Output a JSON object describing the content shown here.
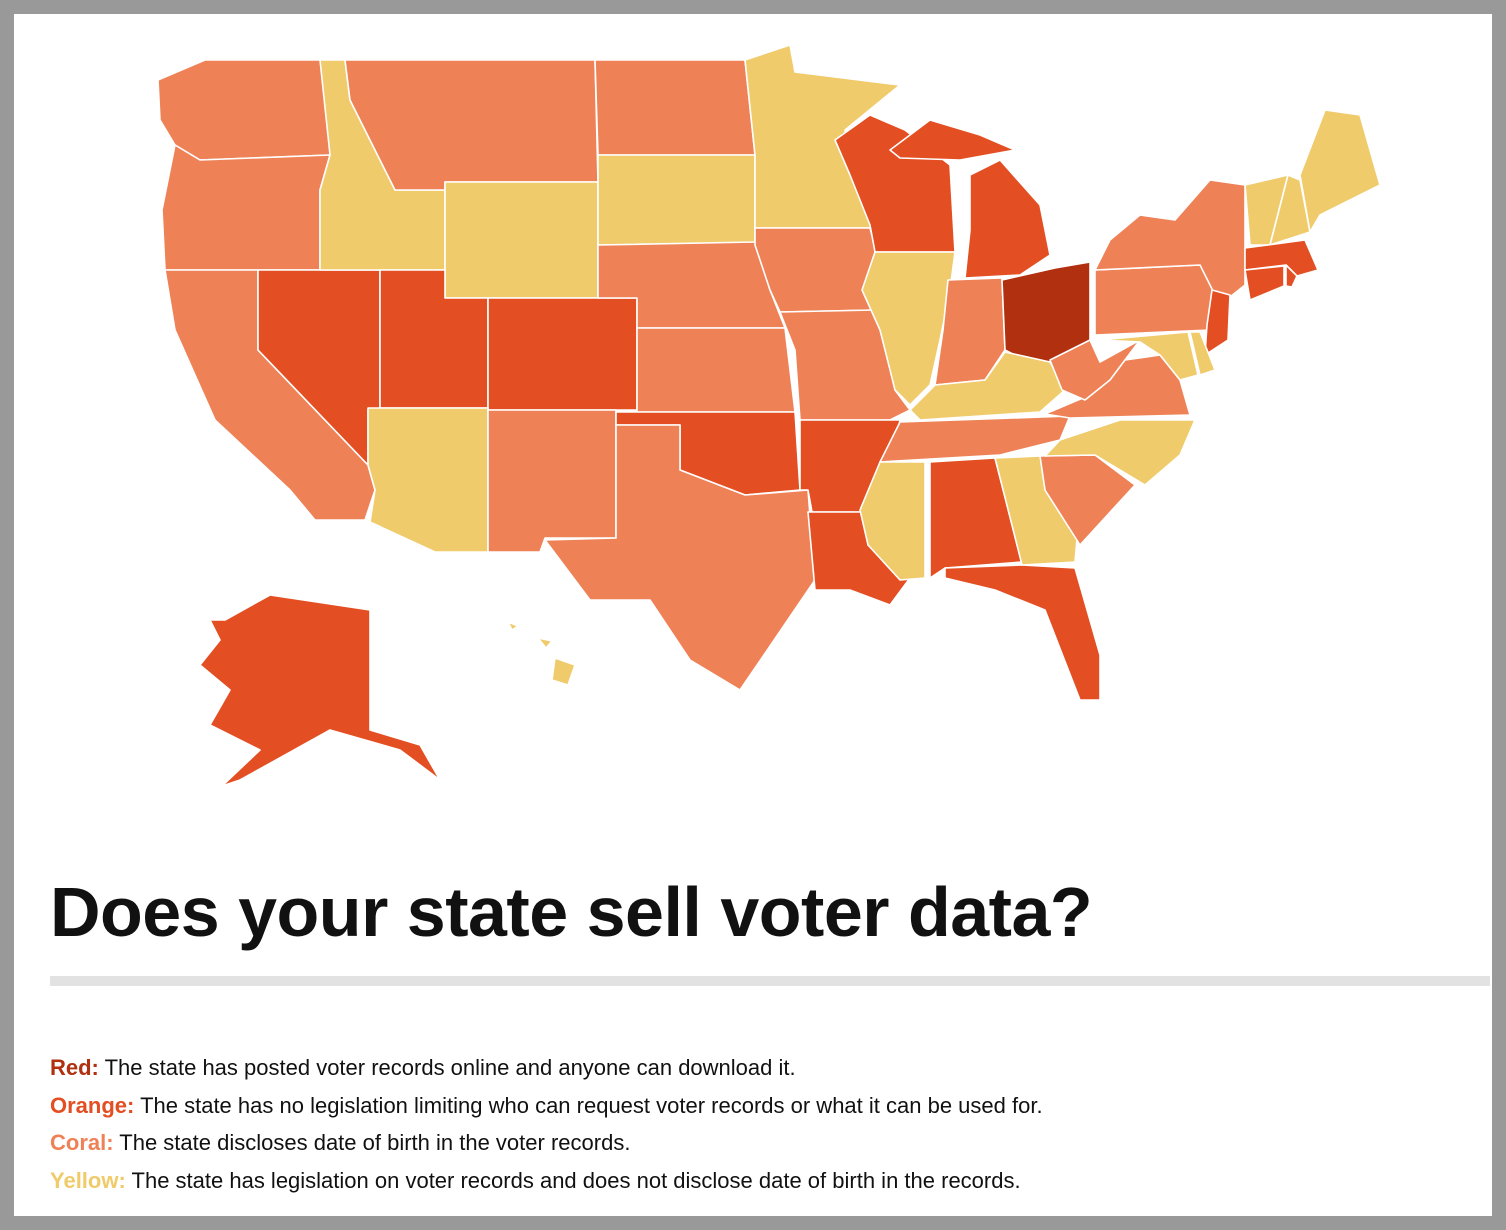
{
  "title": "Does your state sell voter data?",
  "legend": [
    {
      "label": "Red:",
      "text": "The state has posted voter records online and anyone can download it.",
      "color": "#b0300f"
    },
    {
      "label": "Orange:",
      "text": "The state has no legislation limiting who can request voter records or what it can be used for.",
      "color": "#e34e22"
    },
    {
      "label": "Coral:",
      "text": "The state discloses date of birth in the voter records.",
      "color": "#ee8156"
    },
    {
      "label": "Yellow:",
      "text": "The state has legislation on voter records and does not disclose date of birth in the records.",
      "color": "#f0cb6b"
    }
  ]
}
